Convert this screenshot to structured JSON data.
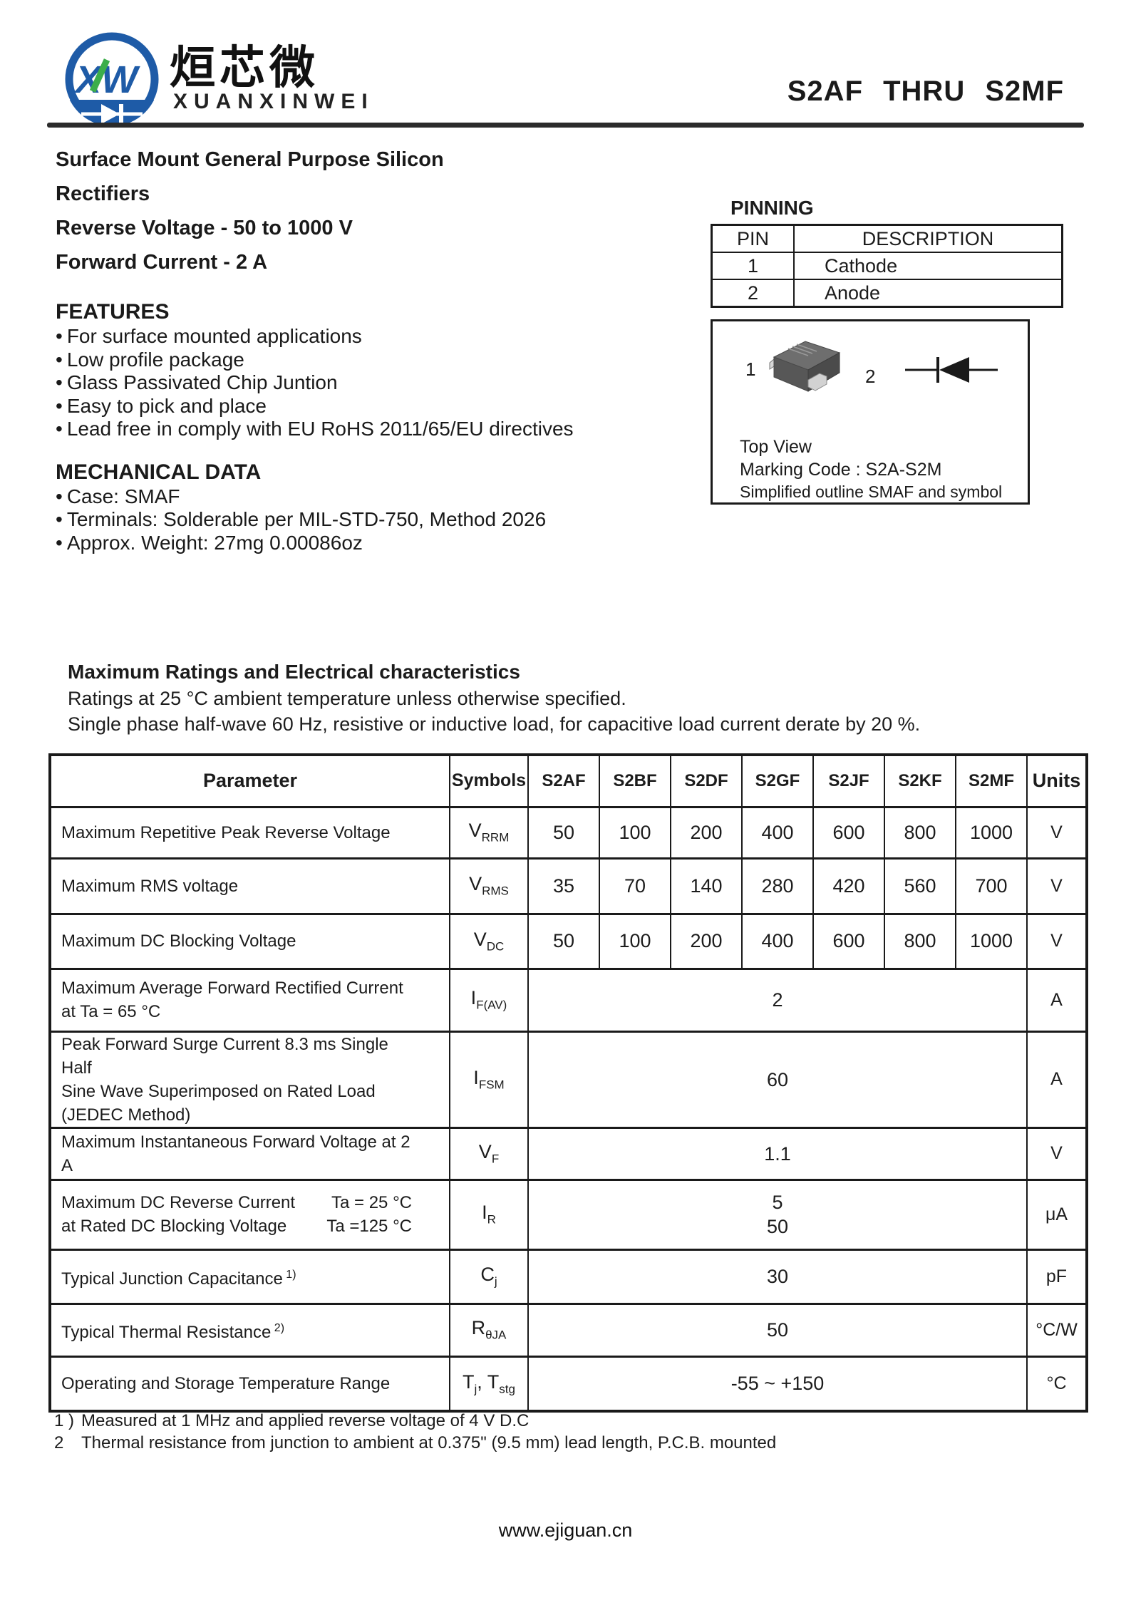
{
  "header": {
    "logo_monogram": "XW",
    "brand_cn": "烜芯微",
    "brand_en": "XUANXINWEI",
    "title": "S2AF  THRU  S2MF"
  },
  "intro": {
    "line1": "Surface Mount General Purpose Silicon Rectifiers",
    "line2": "Reverse Voltage - 50 to 1000 V",
    "line3": "Forward Current - 2 A"
  },
  "bullet_char": "•",
  "features": {
    "heading": "FEATURES",
    "items": [
      "For surface mounted applications",
      "Low profile package",
      "Glass Passivated Chip Juntion",
      "Easy to pick and place",
      "Lead free in comply with EU RoHS 2011/65/EU directives"
    ]
  },
  "mechanical": {
    "heading": "MECHANICAL DATA",
    "items": [
      "Case: SMAF",
      "Terminals: Solderable per MIL-STD-750, Method 2026",
      "Approx. Weight: 27mg  0.00086oz"
    ]
  },
  "pinning": {
    "heading": "PINNING",
    "columns": [
      "PIN",
      "DESCRIPTION"
    ],
    "rows": [
      [
        "1",
        "Cathode"
      ],
      [
        "2",
        "Anode"
      ]
    ]
  },
  "package_box": {
    "pin1_label": "1",
    "pin2_label": "2",
    "line1": "Top View",
    "line2": "Marking Code :  S2A-S2M",
    "line3": "Simplified outline SMAF and symbol"
  },
  "ratings": {
    "heading": "Maximum Ratings and Electrical characteristics",
    "note1": "Ratings at 25 °C ambient temperature unless otherwise specified.",
    "note2": "Single phase half-wave 60 Hz, resistive or inductive load, for capacitive load current derate by 20 %."
  },
  "table": {
    "headers": [
      "Parameter",
      "Symbols",
      "S2AF",
      "S2BF",
      "S2DF",
      "S2GF",
      "S2JF",
      "S2KF",
      "S2MF",
      "Units"
    ],
    "rows": [
      {
        "param_lines": [
          "Maximum Repetitive Peak Reverse Voltage"
        ],
        "symbol": [
          [
            "V",
            false
          ],
          [
            "RRM",
            true
          ]
        ],
        "values": [
          "50",
          "100",
          "200",
          "400",
          "600",
          "800",
          "1000"
        ],
        "unit": "V"
      },
      {
        "param_lines": [
          "Maximum RMS voltage"
        ],
        "symbol": [
          [
            "V",
            false
          ],
          [
            "RMS",
            true
          ]
        ],
        "values": [
          "35",
          "70",
          "140",
          "280",
          "420",
          "560",
          "700"
        ],
        "unit": "V"
      },
      {
        "param_lines": [
          "Maximum DC Blocking Voltage"
        ],
        "symbol": [
          [
            "V",
            false
          ],
          [
            "DC",
            true
          ]
        ],
        "values": [
          "50",
          "100",
          "200",
          "400",
          "600",
          "800",
          "1000"
        ],
        "unit": "V"
      },
      {
        "param_lines": [
          "Maximum Average Forward Rectified Current",
          "at Ta = 65 °C"
        ],
        "symbol": [
          [
            "I",
            false
          ],
          [
            "F(AV)",
            true
          ]
        ],
        "merged": [
          "2"
        ],
        "unit": "A"
      },
      {
        "param_lines": [
          "Peak Forward Surge Current 8.3 ms Single Half",
          "Sine Wave Superimposed on Rated Load",
          "(JEDEC Method)"
        ],
        "symbol": [
          [
            "I",
            false
          ],
          [
            "FSM",
            true
          ]
        ],
        "merged": [
          "60"
        ],
        "unit": "A"
      },
      {
        "param_lines": [
          "Maximum Instantaneous Forward Voltage at 2 A"
        ],
        "symbol": [
          [
            "V",
            false
          ],
          [
            "F",
            true
          ]
        ],
        "merged": [
          "1.1"
        ],
        "unit": "V"
      },
      {
        "param_lines": [
          "Maximum DC Reverse Current",
          "at Rated DC Blocking Voltage"
        ],
        "conditions": [
          "Ta = 25 °C",
          "Ta =125 °C"
        ],
        "symbol": [
          [
            "I",
            false
          ],
          [
            "R",
            true
          ]
        ],
        "merged": [
          "5",
          "50"
        ],
        "unit": "μA"
      },
      {
        "param_lines": [
          "Typical Junction Capacitance"
        ],
        "sup": "1)",
        "symbol": [
          [
            "C",
            false
          ],
          [
            "j",
            true
          ]
        ],
        "merged": [
          "30"
        ],
        "unit": "pF"
      },
      {
        "param_lines": [
          "Typical Thermal Resistance"
        ],
        "sup": "2)",
        "symbol": [
          [
            "R",
            false
          ],
          [
            "θJA",
            true
          ]
        ],
        "merged": [
          "50"
        ],
        "unit": "°C/W"
      },
      {
        "param_lines": [
          "Operating and Storage Temperature Range"
        ],
        "symbol": [
          [
            "T",
            false
          ],
          [
            "j",
            true
          ],
          [
            ", T",
            false
          ],
          [
            "stg",
            true
          ]
        ],
        "merged": [
          "-55 ~ +150"
        ],
        "unit": "°C"
      }
    ]
  },
  "footnotes": [
    {
      "marker": "1 )",
      "text": "Measured at 1 MHz and applied reverse voltage of 4 V D.C"
    },
    {
      "marker": "2",
      "text": "Thermal resistance from junction to ambient at 0.375\" (9.5 mm) lead length, P.C.B. mounted"
    }
  ],
  "footer": {
    "url": "www.ejiguan.cn"
  },
  "colors": {
    "logo_blue": "#1e5ba7",
    "logo_green": "#3cae4a",
    "ink": "#1a1a1a"
  }
}
